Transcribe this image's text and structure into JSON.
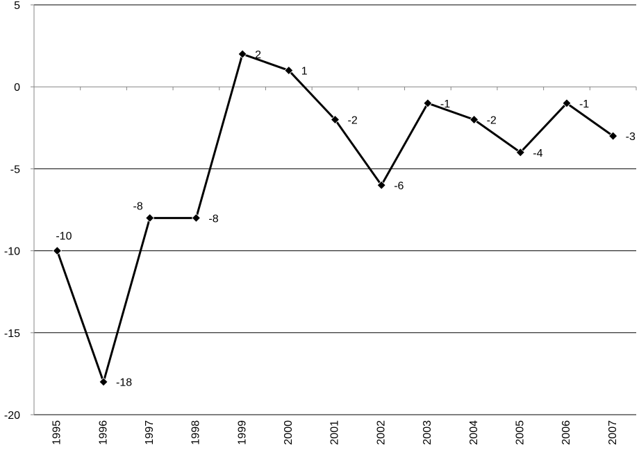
{
  "chart_data": {
    "type": "line",
    "categories": [
      "1995",
      "1996",
      "1997",
      "1998",
      "1999",
      "2000",
      "2001",
      "2002",
      "2003",
      "2004",
      "2005",
      "2006",
      "2007"
    ],
    "series": [
      {
        "values": [
          -10,
          -18,
          -8,
          -8,
          2,
          1,
          -2,
          -6,
          -1,
          -2,
          -4,
          -1,
          -3
        ],
        "labels": [
          "-10",
          "-18",
          "-8",
          "-8",
          "2",
          "1",
          "-2",
          "-6",
          "-1",
          "-2",
          "-4",
          "-1",
          "-3"
        ]
      }
    ],
    "y_ticks": [
      "5",
      "0",
      "-5",
      "-10",
      "-15",
      "-20"
    ],
    "ylim": [
      -20,
      5
    ],
    "y_tick_step": 5,
    "grid": "horizontal",
    "legend": "none",
    "title": "",
    "xlabel": "",
    "ylabel": "",
    "colors": {
      "line": "#000000",
      "marker": "#000000",
      "gridline": "#000000",
      "axis": "#868686"
    },
    "marker": "diamond"
  }
}
